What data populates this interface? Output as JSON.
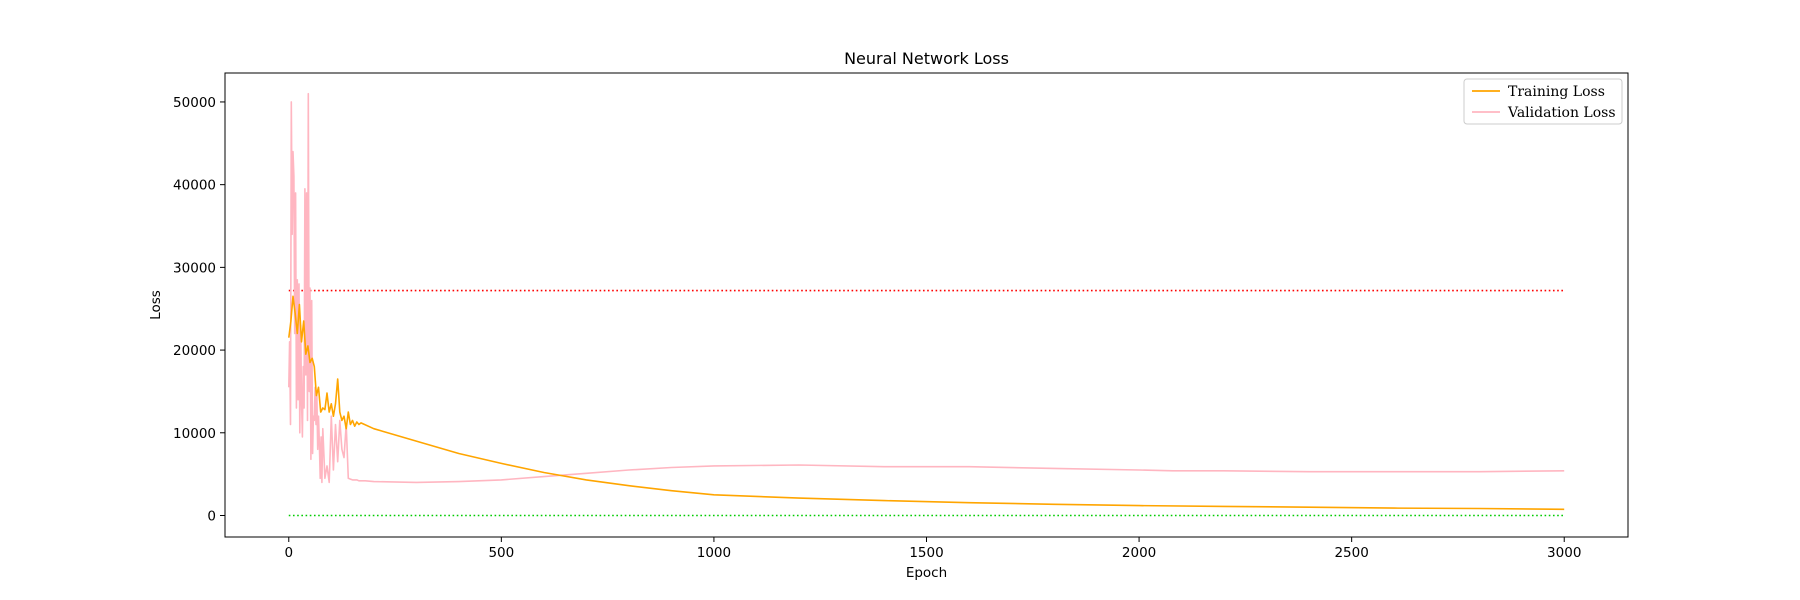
{
  "chart_data": {
    "type": "line",
    "title": "Neural Network Loss",
    "xlabel": "Epoch",
    "ylabel": "Loss",
    "xlim": [
      -150,
      3150
    ],
    "ylim": [
      -2600,
      53500
    ],
    "xticks": [
      0,
      500,
      1000,
      1500,
      2000,
      2500,
      3000
    ],
    "yticks": [
      0,
      10000,
      20000,
      30000,
      40000,
      50000
    ],
    "grid": false,
    "legend_position": "top-right",
    "series": [
      {
        "name": "Training Loss",
        "color": "#ffa500",
        "x": [
          0,
          5,
          10,
          15,
          20,
          25,
          30,
          35,
          40,
          45,
          50,
          55,
          60,
          65,
          70,
          75,
          80,
          85,
          90,
          95,
          100,
          105,
          110,
          115,
          120,
          125,
          130,
          135,
          140,
          145,
          150,
          155,
          160,
          165,
          170,
          200,
          300,
          400,
          500,
          600,
          700,
          800,
          900,
          1000,
          1200,
          1400,
          1600,
          1800,
          2000,
          2200,
          2400,
          2600,
          2800,
          3000
        ],
        "y": [
          21500,
          23500,
          26500,
          24500,
          22000,
          25500,
          21000,
          23500,
          19500,
          20500,
          18500,
          19000,
          18000,
          14500,
          15500,
          12500,
          13000,
          12800,
          14800,
          12500,
          13500,
          12000,
          13500,
          16500,
          12500,
          11500,
          12000,
          10500,
          12500,
          11000,
          11500,
          10800,
          11300,
          11000,
          11200,
          10500,
          9000,
          7500,
          6300,
          5200,
          4300,
          3600,
          3000,
          2500,
          2100,
          1800,
          1550,
          1350,
          1200,
          1100,
          1000,
          900,
          850,
          750
        ]
      },
      {
        "name": "Validation Loss",
        "color": "#ffb6c1",
        "x": [
          0,
          2,
          4,
          6,
          8,
          10,
          12,
          14,
          16,
          18,
          20,
          22,
          24,
          26,
          28,
          30,
          32,
          34,
          36,
          38,
          40,
          42,
          44,
          46,
          48,
          50,
          52,
          54,
          56,
          58,
          60,
          62,
          64,
          66,
          68,
          70,
          72,
          74,
          76,
          78,
          80,
          85,
          90,
          95,
          100,
          105,
          110,
          115,
          120,
          125,
          130,
          135,
          140,
          145,
          150,
          155,
          160,
          165,
          170,
          175,
          180,
          200,
          300,
          400,
          500,
          600,
          700,
          800,
          900,
          1000,
          1200,
          1400,
          1600,
          1800,
          2000,
          2080,
          2200,
          2400,
          2600,
          2800,
          3000
        ],
        "y": [
          15500,
          21000,
          11000,
          50000,
          34000,
          44000,
          41000,
          22000,
          39000,
          13000,
          28500,
          14000,
          28000,
          10000,
          23000,
          14000,
          9500,
          18000,
          13000,
          39500,
          17000,
          39000,
          11500,
          51000,
          15000,
          27500,
          6800,
          26000,
          7500,
          12000,
          11500,
          15500,
          11000,
          15000,
          8000,
          12000,
          8500,
          4500,
          9500,
          4000,
          10500,
          4500,
          6000,
          4000,
          12000,
          5500,
          11000,
          6500,
          11500,
          8000,
          7000,
          11000,
          4500,
          4400,
          4300,
          4300,
          4300,
          4200,
          4200,
          4200,
          4200,
          4100,
          4000,
          4100,
          4300,
          4700,
          5100,
          5500,
          5800,
          6000,
          6100,
          5900,
          5900,
          5700,
          5500,
          5400,
          5400,
          5300,
          5300,
          5300,
          5400
        ]
      }
    ],
    "reference_lines": [
      {
        "y": 27200,
        "color": "#ff0000",
        "style": "dotted"
      },
      {
        "y": 0,
        "color": "#00cc00",
        "style": "dotted"
      }
    ]
  }
}
